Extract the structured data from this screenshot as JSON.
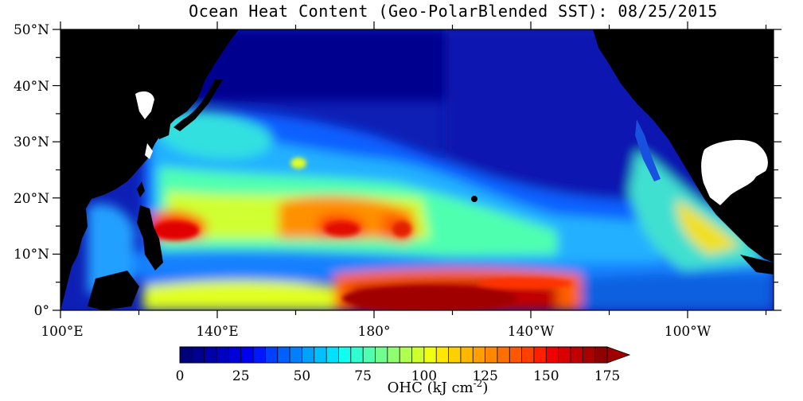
{
  "title": "Ocean Heat Content (Geo-PolarBlended SST): 08/25/2015",
  "map": {
    "lat_labels": [
      "0°",
      "10°N",
      "20°N",
      "30°N",
      "40°N",
      "50°N"
    ],
    "lon_labels": [
      "100°E",
      "140°E",
      "180°",
      "140°W",
      "100°W"
    ],
    "lat_range_deg": [
      0,
      50
    ],
    "lon_range_deg": [
      100,
      282
    ]
  },
  "colorbar": {
    "ticks": [
      "0",
      "25",
      "50",
      "75",
      "100",
      "125",
      "150",
      "175"
    ],
    "min": 0,
    "max": 175,
    "step": 5,
    "label_main": "OHC (kJ cm",
    "label_exp": "-2",
    "label_close": ")",
    "colors": [
      "#00007a",
      "#000090",
      "#0000a8",
      "#0000c0",
      "#0000d8",
      "#0000f0",
      "#0018ff",
      "#0040ff",
      "#0060ff",
      "#0080ff",
      "#00a0ff",
      "#00c0ff",
      "#00e0ff",
      "#10ffef",
      "#30ffcf",
      "#50ffaf",
      "#70ff8f",
      "#90ff6f",
      "#b0ff4f",
      "#d0ff2f",
      "#f0ff0f",
      "#ffe800",
      "#ffd000",
      "#ffb800",
      "#ffa000",
      "#ff8800",
      "#ff7000",
      "#ff5800",
      "#ff4000",
      "#ff2000",
      "#f00000",
      "#d80000",
      "#c00000",
      "#a80000",
      "#900000"
    ],
    "arrow_color": "#a00000"
  }
}
